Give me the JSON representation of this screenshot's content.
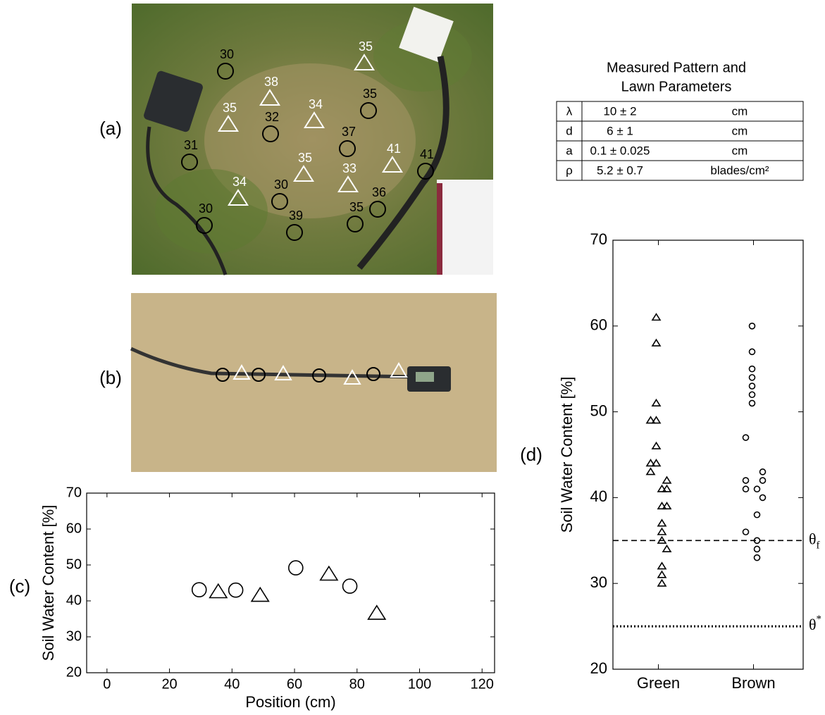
{
  "panel_labels": [
    "(a)",
    "(b)",
    "(c)",
    "(d)"
  ],
  "photo_a": {
    "markers": [
      {
        "shape": "circle",
        "label": "30"
      },
      {
        "shape": "circle",
        "label": "32"
      },
      {
        "shape": "circle",
        "label": "35"
      },
      {
        "shape": "circle",
        "label": "31"
      },
      {
        "shape": "circle",
        "label": "37"
      },
      {
        "shape": "circle",
        "label": "41"
      },
      {
        "shape": "circle",
        "label": "30"
      },
      {
        "shape": "circle",
        "label": "30"
      },
      {
        "shape": "circle",
        "label": "39"
      },
      {
        "shape": "circle",
        "label": "35"
      },
      {
        "shape": "circle",
        "label": "36"
      },
      {
        "shape": "triangle",
        "label": "35"
      },
      {
        "shape": "triangle",
        "label": "38"
      },
      {
        "shape": "triangle",
        "label": "35"
      },
      {
        "shape": "triangle",
        "label": "34"
      },
      {
        "shape": "triangle",
        "label": "41"
      },
      {
        "shape": "triangle",
        "label": "35"
      },
      {
        "shape": "triangle",
        "label": "33"
      },
      {
        "shape": "triangle",
        "label": "34"
      }
    ]
  },
  "table": {
    "title": [
      "Measured Pattern and",
      "Lawn Parameters"
    ],
    "rows": [
      [
        "λ",
        "10 ± 2",
        "cm"
      ],
      [
        "d",
        "6 ± 1",
        "cm"
      ],
      [
        "a",
        "0.1 ± 0.025",
        "cm"
      ],
      [
        "ρ",
        "5.2 ± 0.7",
        "blades/cm²"
      ]
    ]
  },
  "chart_data": [
    {
      "type": "scatter",
      "x_label": "Position (cm)",
      "y_label": "Soil Water Content  [%]",
      "xlim": [
        -6.5,
        124
      ],
      "xticks": [
        0,
        20,
        40,
        60,
        80,
        100,
        120
      ],
      "ylim": [
        20,
        70
      ],
      "yticks": [
        20,
        30,
        40,
        50,
        60,
        70
      ],
      "series": [
        {
          "marker": "circle",
          "color": "#000000",
          "x": [
            29.5,
            41.2,
            60.4,
            77.7
          ],
          "values": [
            43.1,
            43,
            49.2,
            44.1
          ]
        },
        {
          "marker": "triangle",
          "color": "#000000",
          "x": [
            35.6,
            49,
            71,
            86.3
          ],
          "values": [
            42.5,
            41.5,
            47.4,
            36.5
          ]
        }
      ]
    },
    {
      "type": "strip",
      "y_label": "Soil Water Content  [%]",
      "categories": [
        "Green",
        "Brown"
      ],
      "ylim": [
        20,
        70
      ],
      "yticks": [
        20,
        30,
        40,
        50,
        60,
        70
      ],
      "series": [
        {
          "marker": "triangle",
          "color": "#000000",
          "category": 0,
          "values": [
            61,
            58,
            51,
            49,
            49,
            46,
            44,
            44,
            43,
            42,
            41,
            41,
            39,
            39,
            37,
            36,
            35,
            34,
            32,
            31,
            30
          ]
        },
        {
          "marker": "circle",
          "color": "#000000",
          "category": 1,
          "values": [
            60,
            57,
            55,
            54,
            53,
            52,
            51,
            47,
            43,
            42,
            42,
            41,
            41,
            40,
            38,
            36,
            35,
            34,
            33
          ]
        }
      ],
      "reference_lines": [
        {
          "value": 35,
          "style": "dashed",
          "symbol": "θ",
          "sub": "f"
        },
        {
          "value": 25,
          "style": "dotted",
          "symbol": "θ",
          "sup": "*"
        }
      ]
    }
  ]
}
